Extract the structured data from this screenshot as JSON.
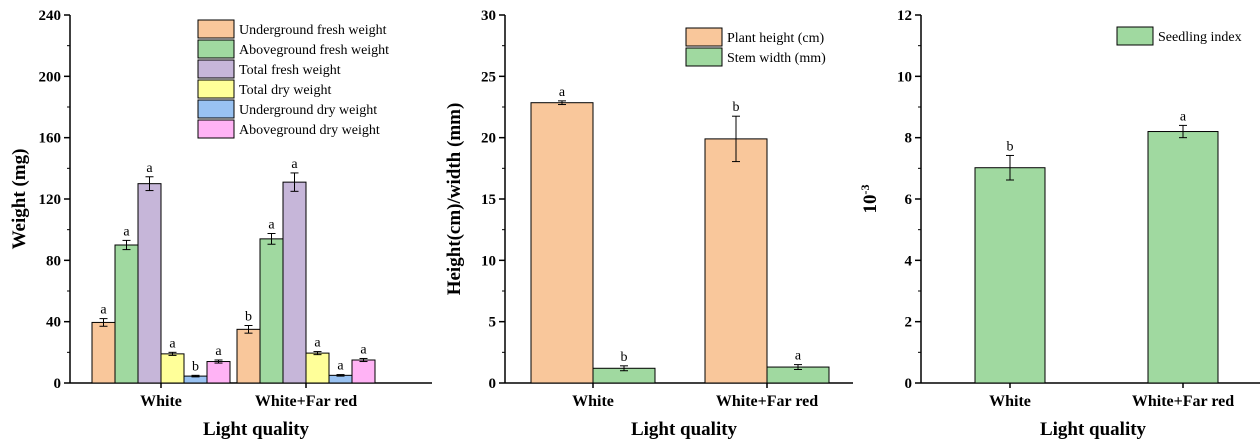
{
  "chart_data": [
    {
      "type": "bar",
      "xlabel": "Light quality",
      "ylabel": "Weight (mg)",
      "ylim": [
        0,
        240
      ],
      "yticks": [
        0,
        40,
        80,
        120,
        160,
        200,
        240
      ],
      "categories": [
        "White",
        "White+Far red"
      ],
      "legend_position": "top-right",
      "series": [
        {
          "name": "Underground fresh weight",
          "color": "#f9c79b",
          "values": [
            39.5,
            35.0
          ],
          "errors": [
            2.5,
            2.5
          ],
          "labels": [
            "a",
            "b"
          ]
        },
        {
          "name": "Aboveground fresh weight",
          "color": "#a0d9a0",
          "values": [
            90.0,
            94.0
          ],
          "errors": [
            3.0,
            3.5
          ],
          "labels": [
            "a",
            "a"
          ]
        },
        {
          "name": "Total fresh weight",
          "color": "#c6b6d9",
          "values": [
            130.0,
            131.0
          ],
          "errors": [
            4.5,
            6.0
          ],
          "labels": [
            "a",
            "a"
          ]
        },
        {
          "name": "Total dry weight",
          "color": "#ffff99",
          "values": [
            19.0,
            19.5
          ],
          "errors": [
            1.0,
            1.0
          ],
          "labels": [
            "a",
            "a"
          ]
        },
        {
          "name": "Underground dry weight",
          "color": "#99c2f2",
          "values": [
            4.5,
            5.0
          ],
          "errors": [
            0.5,
            0.5
          ],
          "labels": [
            "b",
            "a"
          ]
        },
        {
          "name": "Aboveground dry weight",
          "color": "#ffb3f5",
          "values": [
            14.0,
            15.0
          ],
          "errors": [
            1.0,
            1.0
          ],
          "labels": [
            "a",
            "a"
          ]
        }
      ]
    },
    {
      "type": "bar",
      "xlabel": "Light quality",
      "ylabel": "Height(cm)/width (mm)",
      "ylim": [
        0,
        30
      ],
      "yticks": [
        0,
        5,
        10,
        15,
        20,
        25,
        30
      ],
      "categories": [
        "White",
        "White+Far red"
      ],
      "legend_position": "top-right",
      "series": [
        {
          "name": "Plant height (cm)",
          "color": "#f9c79b",
          "values": [
            22.85,
            19.9
          ],
          "errors": [
            0.15,
            1.85
          ],
          "labels": [
            "a",
            "b"
          ]
        },
        {
          "name": "Stem width (mm)",
          "color": "#a0d9a0",
          "values": [
            1.2,
            1.3
          ],
          "errors": [
            0.2,
            0.2
          ],
          "labels": [
            "b",
            "a"
          ]
        }
      ]
    },
    {
      "type": "bar",
      "xlabel": "Light quality",
      "ylabel": "10-3",
      "ylim": [
        0,
        12
      ],
      "yticks": [
        0,
        2,
        4,
        6,
        8,
        10,
        12
      ],
      "categories": [
        "White",
        "White+Far red"
      ],
      "legend_position": "top-right",
      "series": [
        {
          "name": "Seedling index",
          "color": "#a0d9a0",
          "values": [
            7.02,
            8.2
          ],
          "errors": [
            0.4,
            0.2
          ],
          "labels": [
            "b",
            "a"
          ]
        }
      ]
    }
  ]
}
